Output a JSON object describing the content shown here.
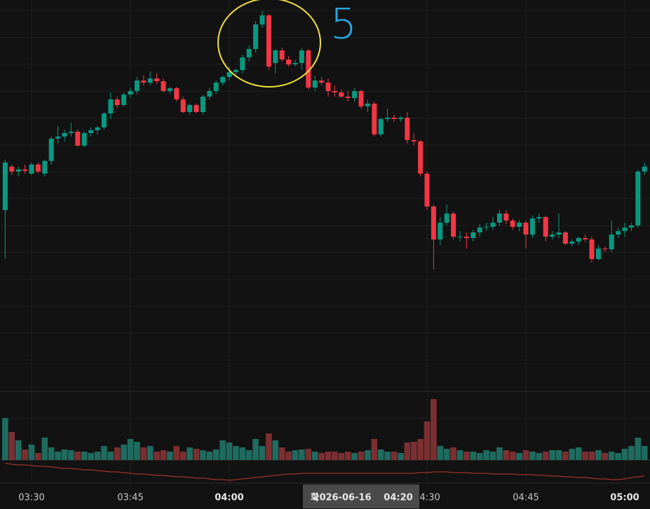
{
  "chart_data": {
    "type": "candlestick",
    "up_color": "#089981",
    "down_color": "#f23645",
    "volume_up_color": "#1f6b5f",
    "volume_down_color": "#7c2f31",
    "indicator_color": "#c0392b",
    "ylim": [
      43,
      600
    ],
    "vlim": [
      0,
      90
    ],
    "ilim": [
      0,
      33
    ],
    "candles": [
      [
        300,
        372,
        230,
        368
      ],
      [
        362,
        365,
        350,
        355
      ],
      [
        355,
        362,
        348,
        358
      ],
      [
        358,
        365,
        352,
        356
      ],
      [
        352,
        368,
        350,
        365
      ],
      [
        365,
        368,
        352,
        355
      ],
      [
        352,
        372,
        348,
        370
      ],
      [
        370,
        405,
        365,
        402
      ],
      [
        402,
        420,
        395,
        405
      ],
      [
        405,
        415,
        398,
        410
      ],
      [
        410,
        425,
        405,
        412
      ],
      [
        412,
        415,
        390,
        392
      ],
      [
        392,
        412,
        390,
        410
      ],
      [
        410,
        418,
        405,
        414
      ],
      [
        414,
        420,
        408,
        418
      ],
      [
        418,
        440,
        415,
        438
      ],
      [
        438,
        468,
        430,
        458
      ],
      [
        458,
        462,
        445,
        450
      ],
      [
        450,
        468,
        448,
        465
      ],
      [
        465,
        475,
        460,
        470
      ],
      [
        470,
        490,
        465,
        485
      ],
      [
        485,
        492,
        478,
        482
      ],
      [
        482,
        498,
        478,
        488
      ],
      [
        488,
        495,
        480,
        484
      ],
      [
        484,
        488,
        468,
        470
      ],
      [
        470,
        476,
        466,
        474
      ],
      [
        474,
        476,
        455,
        458
      ],
      [
        458,
        462,
        438,
        440
      ],
      [
        440,
        452,
        436,
        450
      ],
      [
        450,
        452,
        438,
        440
      ],
      [
        440,
        465,
        436,
        462
      ],
      [
        462,
        475,
        458,
        470
      ],
      [
        470,
        485,
        466,
        482
      ],
      [
        482,
        492,
        478,
        490
      ],
      [
        490,
        505,
        485,
        497
      ],
      [
        497,
        502,
        490,
        500
      ],
      [
        500,
        522,
        495,
        518
      ],
      [
        518,
        535,
        512,
        530
      ],
      [
        530,
        570,
        525,
        565
      ],
      [
        565,
        585,
        560,
        578
      ],
      [
        578,
        580,
        500,
        505
      ],
      [
        510,
        530,
        495,
        528
      ],
      [
        528,
        532,
        512,
        515
      ],
      [
        515,
        520,
        505,
        508
      ],
      [
        508,
        515,
        505,
        510
      ],
      [
        510,
        532,
        500,
        528
      ],
      [
        528,
        530,
        472,
        475
      ],
      [
        475,
        492,
        470,
        485
      ],
      [
        485,
        490,
        478,
        482
      ],
      [
        482,
        488,
        462,
        470
      ],
      [
        470,
        478,
        462,
        468
      ],
      [
        468,
        472,
        460,
        462
      ],
      [
        462,
        470,
        455,
        460
      ],
      [
        460,
        474,
        455,
        470
      ],
      [
        470,
        472,
        445,
        448
      ],
      [
        448,
        458,
        440,
        452
      ],
      [
        452,
        455,
        405,
        408
      ],
      [
        408,
        432,
        405,
        430
      ],
      [
        430,
        445,
        426,
        432
      ],
      [
        432,
        436,
        426,
        430
      ],
      [
        430,
        434,
        426,
        432
      ],
      [
        432,
        440,
        395,
        400
      ],
      [
        400,
        410,
        392,
        398
      ],
      [
        398,
        400,
        348,
        352
      ],
      [
        352,
        355,
        300,
        305
      ],
      [
        305,
        308,
        215,
        258
      ],
      [
        258,
        290,
        250,
        282
      ],
      [
        282,
        308,
        278,
        295
      ],
      [
        295,
        298,
        258,
        262
      ],
      [
        262,
        270,
        255,
        262
      ],
      [
        262,
        268,
        245,
        260
      ],
      [
        260,
        272,
        255,
        268
      ],
      [
        268,
        280,
        262,
        275
      ],
      [
        275,
        282,
        270,
        276
      ],
      [
        276,
        290,
        272,
        282
      ],
      [
        282,
        300,
        278,
        295
      ],
      [
        295,
        300,
        280,
        285
      ],
      [
        285,
        288,
        272,
        276
      ],
      [
        276,
        286,
        270,
        282
      ],
      [
        282,
        285,
        245,
        265
      ],
      [
        265,
        292,
        260,
        288
      ],
      [
        288,
        295,
        282,
        290
      ],
      [
        290,
        292,
        255,
        262
      ],
      [
        262,
        270,
        258,
        265
      ],
      [
        265,
        295,
        260,
        268
      ],
      [
        268,
        270,
        250,
        252
      ],
      [
        252,
        258,
        248,
        255
      ],
      [
        255,
        262,
        250,
        260
      ],
      [
        260,
        265,
        254,
        258
      ],
      [
        258,
        262,
        225,
        230
      ],
      [
        230,
        250,
        228,
        245
      ],
      [
        245,
        248,
        240,
        244
      ],
      [
        244,
        285,
        240,
        265
      ],
      [
        265,
        275,
        260,
        270
      ],
      [
        270,
        282,
        262,
        275
      ],
      [
        275,
        282,
        270,
        278
      ],
      [
        278,
        358,
        275,
        355
      ],
      [
        355,
        368,
        350,
        362
      ]
    ],
    "volumes": [
      60,
      40,
      28,
      15,
      22,
      10,
      32,
      18,
      12,
      15,
      14,
      12,
      12,
      10,
      12,
      20,
      12,
      18,
      22,
      30,
      26,
      18,
      20,
      12,
      14,
      12,
      20,
      12,
      18,
      16,
      14,
      12,
      15,
      28,
      25,
      20,
      18,
      14,
      30,
      20,
      38,
      28,
      18,
      12,
      14,
      15,
      16,
      12,
      10,
      12,
      12,
      10,
      12,
      10,
      12,
      14,
      30,
      15,
      12,
      12,
      10,
      25,
      26,
      30,
      55,
      87,
      20,
      16,
      18,
      14,
      12,
      12,
      10,
      14,
      12,
      18,
      14,
      12,
      10,
      14,
      12,
      10,
      12,
      14,
      14,
      12,
      16,
      18,
      12,
      12,
      14,
      10,
      12,
      10,
      16,
      20,
      32,
      20
    ],
    "indicator": [
      28,
      27,
      26,
      26,
      25,
      24,
      24,
      23,
      22,
      21,
      21,
      20,
      19,
      19,
      18,
      17,
      16,
      16,
      15,
      14,
      13,
      13,
      12,
      11,
      11,
      10,
      9,
      9,
      8,
      7,
      7,
      6,
      5,
      5,
      4,
      5,
      6,
      7,
      8,
      9,
      10,
      11,
      12,
      13,
      13,
      14,
      14,
      14,
      14,
      14,
      14,
      14,
      14,
      14,
      14,
      14,
      14,
      14,
      14,
      14,
      14,
      14,
      14,
      15,
      15,
      16,
      16,
      16,
      15,
      15,
      15,
      14,
      14,
      14,
      13,
      13,
      13,
      13,
      12,
      12,
      12,
      11,
      11,
      10,
      10,
      9,
      9,
      8,
      8,
      7,
      6,
      6,
      5,
      5,
      6,
      8,
      9,
      10
    ],
    "xticks": [
      {
        "value": 4,
        "label": "03:30"
      },
      {
        "value": 19,
        "label": "03:45"
      },
      {
        "value": 34,
        "label": "04:00"
      },
      {
        "value": 64,
        "label": "04:30"
      },
      {
        "value": 79,
        "label": "04:45"
      },
      {
        "value": 94,
        "label": "05:00"
      }
    ],
    "crosshair": {
      "value": 54,
      "day": "화",
      "date": "2026-06-16",
      "time": "04:20"
    },
    "annotation": "5"
  }
}
